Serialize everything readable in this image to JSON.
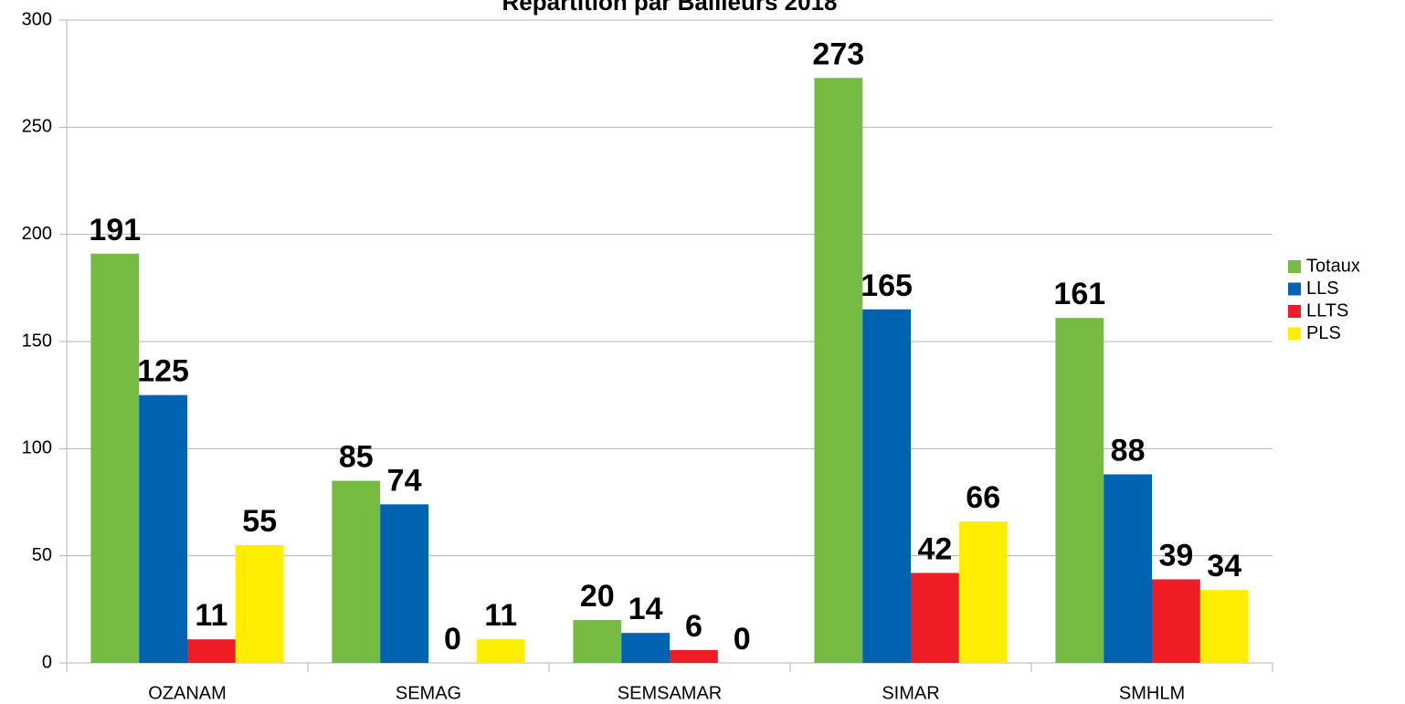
{
  "chart_data": {
    "type": "bar",
    "title": "Répartition par Bailleurs 2018",
    "categories": [
      "OZANAM",
      "SEMAG",
      "SEMSAMAR",
      "SIMAR",
      "SMHLM"
    ],
    "series": [
      {
        "name": "Totaux",
        "color": "#77bc42",
        "values": [
          191,
          85,
          20,
          273,
          161
        ]
      },
      {
        "name": "LLS",
        "color": "#0063b1",
        "values": [
          125,
          74,
          14,
          165,
          88
        ]
      },
      {
        "name": "LLTS",
        "color": "#ee1c24",
        "values": [
          11,
          0,
          6,
          42,
          39
        ]
      },
      {
        "name": "PLS",
        "color": "#ffee00",
        "values": [
          55,
          11,
          0,
          66,
          34
        ]
      }
    ],
    "ylim": [
      0,
      300
    ],
    "yticks": [
      0,
      50,
      100,
      150,
      200,
      250,
      300
    ],
    "grid": true,
    "legend": "right"
  }
}
